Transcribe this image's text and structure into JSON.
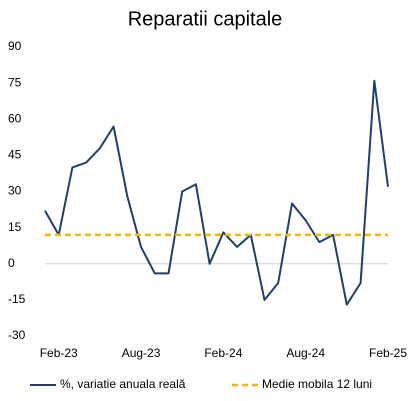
{
  "chart_data": {
    "type": "line",
    "title": "Reparatii capitale",
    "categories": [
      null,
      "Feb-23",
      null,
      null,
      null,
      null,
      null,
      "Aug-23",
      null,
      null,
      null,
      null,
      null,
      "Feb-24",
      null,
      null,
      null,
      null,
      null,
      "Aug-24",
      null,
      null,
      null,
      null,
      null,
      "Feb-25"
    ],
    "series": [
      {
        "name": "%, variatie anuala reală",
        "color": "#1f3f6e",
        "line_style": "solid",
        "values": [
          22,
          12,
          40,
          42,
          48,
          57,
          28,
          7,
          -4,
          -4,
          30,
          33,
          0,
          13,
          7,
          12,
          -15,
          -8,
          25,
          18,
          9,
          12,
          -17,
          -8,
          76,
          32
        ]
      },
      {
        "name": "Medie  mobila 12 luni",
        "color": "#f2b700",
        "line_style": "dashed",
        "values": [
          12,
          12,
          12,
          12,
          12,
          12,
          12,
          12,
          12,
          12,
          12,
          12,
          12,
          12,
          12,
          12,
          12,
          12,
          12,
          12,
          12,
          12,
          12,
          12,
          12,
          12
        ]
      }
    ],
    "ylim": [
      -30,
      90
    ],
    "yticks": [
      -30,
      -15,
      0,
      15,
      30,
      45,
      60,
      75,
      90
    ],
    "legend": "bottom"
  }
}
